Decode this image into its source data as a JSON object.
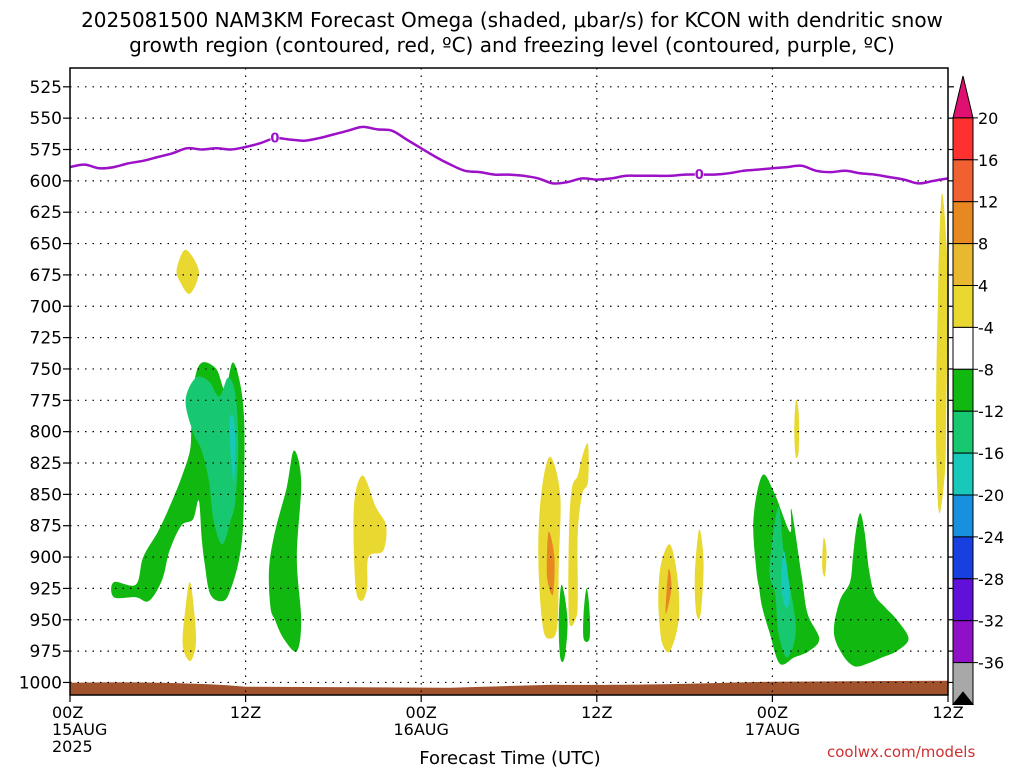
{
  "title_line1": "2025081500 NAM3KM Forecast Omega (shaded, μbar/s) for KCON with dendritic snow",
  "title_line2": "growth region (contoured, red, ºC) and freezing level (contoured, purple, ºC)",
  "credit": "coolwx.com/models",
  "chart_data": {
    "type": "heatmap",
    "xlabel": "Forecast Time (UTC)",
    "ylabel": "",
    "x_unit": "forecast hour",
    "xlim": [
      0,
      60
    ],
    "ylim": [
      1010,
      510
    ],
    "y_ticks": [
      525,
      550,
      575,
      600,
      625,
      650,
      675,
      700,
      725,
      750,
      775,
      800,
      825,
      850,
      875,
      900,
      925,
      950,
      975,
      1000
    ],
    "x_ticks": [
      {
        "hour": 0,
        "lines": [
          "00Z",
          "15AUG",
          "2025"
        ]
      },
      {
        "hour": 12,
        "lines": [
          "12Z"
        ]
      },
      {
        "hour": 24,
        "lines": [
          "00Z",
          "16AUG"
        ]
      },
      {
        "hour": 36,
        "lines": [
          "12Z"
        ]
      },
      {
        "hour": 48,
        "lines": [
          "00Z",
          "17AUG"
        ]
      },
      {
        "hour": 60,
        "lines": [
          "12Z"
        ]
      }
    ],
    "grid": true,
    "colorbar": {
      "labels": [
        "20",
        "16",
        "12",
        "8",
        "4",
        "-4",
        "-8",
        "-12",
        "-16",
        "-20",
        "-24",
        "-28",
        "-32",
        "-36"
      ],
      "colors": [
        "#e01070",
        "#ff3030",
        "#f06030",
        "#e88820",
        "#e8b830",
        "#e8d830",
        "#ffffff",
        "#10b810",
        "#18c870",
        "#18c8b8",
        "#1890e0",
        "#1840e0",
        "#6010d8",
        "#9010c8",
        "#a8a8a8",
        "#000000"
      ]
    },
    "freezing_level": {
      "label": "0",
      "color": "#9c10c8",
      "points": [
        [
          0,
          589
        ],
        [
          1,
          587
        ],
        [
          2,
          590
        ],
        [
          3,
          589
        ],
        [
          4,
          586
        ],
        [
          5,
          584
        ],
        [
          6,
          581
        ],
        [
          7,
          578
        ],
        [
          8,
          574
        ],
        [
          9,
          575
        ],
        [
          10,
          574
        ],
        [
          11,
          575
        ],
        [
          12,
          573
        ],
        [
          13,
          570
        ],
        [
          14,
          566
        ],
        [
          15,
          567
        ],
        [
          16,
          568
        ],
        [
          17,
          566
        ],
        [
          18,
          563
        ],
        [
          19,
          560
        ],
        [
          20,
          557
        ],
        [
          21,
          559
        ],
        [
          22,
          560
        ],
        [
          23,
          567
        ],
        [
          24,
          574
        ],
        [
          25,
          581
        ],
        [
          26,
          587
        ],
        [
          27,
          592
        ],
        [
          28,
          593
        ],
        [
          29,
          595
        ],
        [
          30,
          595
        ],
        [
          31,
          596
        ],
        [
          32,
          598
        ],
        [
          33,
          602
        ],
        [
          34,
          601
        ],
        [
          35,
          598
        ],
        [
          36,
          599
        ],
        [
          37,
          598
        ],
        [
          38,
          596
        ],
        [
          39,
          596
        ],
        [
          40,
          596
        ],
        [
          41,
          596
        ],
        [
          42,
          595
        ],
        [
          43,
          595
        ],
        [
          44,
          595
        ],
        [
          45,
          594
        ],
        [
          46,
          592
        ],
        [
          47,
          591
        ],
        [
          48,
          590
        ],
        [
          49,
          589
        ],
        [
          50,
          588
        ],
        [
          51,
          592
        ],
        [
          52,
          593
        ],
        [
          53,
          592
        ],
        [
          54,
          594
        ],
        [
          55,
          595
        ],
        [
          56,
          597
        ],
        [
          57,
          599
        ],
        [
          58,
          602
        ],
        [
          59,
          600
        ],
        [
          60,
          598
        ]
      ],
      "label_points": [
        [
          14,
          566
        ],
        [
          43,
          595
        ]
      ]
    },
    "omega_regions": [
      {
        "value": -8,
        "color": "#10b810",
        "points": [
          [
            3,
            920
          ],
          [
            4.5,
            922
          ],
          [
            5,
            900
          ],
          [
            6,
            880
          ],
          [
            6.8,
            860
          ],
          [
            7.6,
            837
          ],
          [
            8.2,
            815
          ],
          [
            8.3,
            795
          ],
          [
            8.5,
            760
          ],
          [
            9,
            745
          ],
          [
            10,
            750
          ],
          [
            10.6,
            767
          ],
          [
            11.1,
            745
          ],
          [
            11.6,
            760
          ],
          [
            11.9,
            790
          ],
          [
            11.9,
            840
          ],
          [
            11.8,
            880
          ],
          [
            11.5,
            905
          ],
          [
            11,
            925
          ],
          [
            10.5,
            935
          ],
          [
            9.6,
            930
          ],
          [
            9.2,
            905
          ],
          [
            9,
            885
          ],
          [
            8.8,
            855
          ],
          [
            8.4,
            870
          ],
          [
            7.6,
            875
          ],
          [
            6.8,
            895
          ],
          [
            6.3,
            918
          ],
          [
            5.4,
            935
          ],
          [
            4.5,
            932
          ],
          [
            3,
            932
          ]
        ]
      },
      {
        "value": -12,
        "color": "#18c870",
        "points": [
          [
            7.9,
            775
          ],
          [
            8.6,
            757
          ],
          [
            9.5,
            760
          ],
          [
            10.2,
            772
          ],
          [
            10.8,
            757
          ],
          [
            11.3,
            770
          ],
          [
            11.5,
            810
          ],
          [
            11.3,
            855
          ],
          [
            11,
            870
          ],
          [
            10.4,
            890
          ],
          [
            9.8,
            870
          ],
          [
            9.5,
            840
          ],
          [
            9,
            815
          ],
          [
            8.4,
            800
          ]
        ]
      },
      {
        "value": -16,
        "color": "#18c8b8",
        "points": [
          [
            10.9,
            790
          ],
          [
            11.2,
            790
          ],
          [
            11.3,
            815
          ],
          [
            11.2,
            840
          ],
          [
            11.0,
            820
          ]
        ]
      },
      {
        "value": 4,
        "color": "#e8d830",
        "points": [
          [
            7.3,
            670
          ],
          [
            7.9,
            655
          ],
          [
            8.8,
            672
          ],
          [
            8.2,
            690
          ],
          [
            7.5,
            680
          ]
        ]
      },
      {
        "value": 4,
        "color": "#e8d830",
        "points": [
          [
            7.7,
            970
          ],
          [
            7.9,
            940
          ],
          [
            8.2,
            920
          ],
          [
            8.5,
            945
          ],
          [
            8.6,
            970
          ],
          [
            8.2,
            983
          ]
        ]
      },
      {
        "value": -8,
        "color": "#10b810",
        "points": [
          [
            13.7,
            940
          ],
          [
            13.6,
            910
          ],
          [
            14,
            880
          ],
          [
            14.8,
            845
          ],
          [
            15.3,
            815
          ],
          [
            15.8,
            840
          ],
          [
            15.5,
            900
          ],
          [
            15.8,
            950
          ],
          [
            15.5,
            975
          ],
          [
            14.6,
            965
          ],
          [
            14,
            950
          ]
        ]
      },
      {
        "value": 4,
        "color": "#e8d830",
        "points": [
          [
            19.5,
            922
          ],
          [
            19.4,
            860
          ],
          [
            20,
            835
          ],
          [
            20.9,
            860
          ],
          [
            21.6,
            875
          ],
          [
            21.4,
            895
          ],
          [
            20.4,
            900
          ],
          [
            20.3,
            925
          ],
          [
            19.9,
            935
          ]
        ]
      },
      {
        "value": 4,
        "color": "#e8d830",
        "points": [
          [
            32.3,
            955
          ],
          [
            32.0,
            900
          ],
          [
            32.2,
            850
          ],
          [
            32.8,
            820
          ],
          [
            33.5,
            850
          ],
          [
            33.4,
            905
          ],
          [
            33.3,
            955
          ],
          [
            32.8,
            965
          ]
        ]
      },
      {
        "value": 8,
        "color": "#e88820",
        "points": [
          [
            32.6,
            915
          ],
          [
            32.7,
            880
          ],
          [
            33.1,
            900
          ],
          [
            33.0,
            930
          ]
        ]
      },
      {
        "value": -8,
        "color": "#10b810",
        "points": [
          [
            33.5,
            980
          ],
          [
            33.4,
            950
          ],
          [
            33.6,
            922
          ],
          [
            34,
            950
          ],
          [
            33.8,
            980
          ]
        ]
      },
      {
        "value": 4,
        "color": "#e8d830",
        "points": [
          [
            34.1,
            950
          ],
          [
            34.1,
            880
          ],
          [
            34.3,
            845
          ],
          [
            34.7,
            835
          ],
          [
            35.0,
            820
          ],
          [
            35.4,
            810
          ],
          [
            35.4,
            840
          ],
          [
            35.0,
            850
          ],
          [
            34.7,
            880
          ],
          [
            34.7,
            930
          ],
          [
            34.6,
            948
          ]
        ]
      },
      {
        "value": -8,
        "color": "#10b810",
        "points": [
          [
            35.1,
            965
          ],
          [
            35.1,
            945
          ],
          [
            35.3,
            925
          ],
          [
            35.5,
            942
          ],
          [
            35.5,
            965
          ]
        ]
      },
      {
        "value": 4,
        "color": "#e8d830",
        "points": [
          [
            40.3,
            955
          ],
          [
            40.2,
            930
          ],
          [
            40.4,
            905
          ],
          [
            41,
            890
          ],
          [
            41.5,
            915
          ],
          [
            41.6,
            950
          ],
          [
            41,
            975
          ],
          [
            40.5,
            970
          ]
        ]
      },
      {
        "value": 8,
        "color": "#e88820",
        "points": [
          [
            40.7,
            945
          ],
          [
            40.9,
            910
          ],
          [
            41.1,
            925
          ]
        ]
      },
      {
        "value": 4,
        "color": "#e8d830",
        "points": [
          [
            42.8,
            945
          ],
          [
            42.7,
            915
          ],
          [
            43.0,
            878
          ],
          [
            43.3,
            905
          ],
          [
            43.1,
            945
          ]
        ]
      },
      {
        "value": -8,
        "color": "#10b810",
        "points": [
          [
            46.9,
            910
          ],
          [
            46.7,
            870
          ],
          [
            47.3,
            835
          ],
          [
            48.1,
            848
          ],
          [
            49.2,
            880
          ],
          [
            49.3,
            862
          ],
          [
            50,
            915
          ],
          [
            50.4,
            945
          ],
          [
            51.2,
            965
          ],
          [
            50.5,
            975
          ],
          [
            49.5,
            980
          ],
          [
            48.5,
            985
          ],
          [
            47.8,
            960
          ],
          [
            47.3,
            940
          ],
          [
            47.1,
            925
          ]
        ]
      },
      {
        "value": -12,
        "color": "#18c870",
        "points": [
          [
            47.8,
            910
          ],
          [
            48.4,
            860
          ],
          [
            48.8,
            900
          ],
          [
            49.3,
            930
          ],
          [
            49.6,
            960
          ],
          [
            49,
            980
          ],
          [
            48.4,
            960
          ],
          [
            48.2,
            930
          ]
        ]
      },
      {
        "value": -16,
        "color": "#18c8b8",
        "points": [
          [
            48.6,
            920
          ],
          [
            48.8,
            895
          ],
          [
            49.2,
            930
          ],
          [
            48.9,
            940
          ]
        ]
      },
      {
        "value": 4,
        "color": "#e8d830",
        "points": [
          [
            49.5,
            800
          ],
          [
            49.6,
            775
          ],
          [
            49.8,
            785
          ],
          [
            49.8,
            815
          ],
          [
            49.6,
            820
          ]
        ]
      },
      {
        "value": 4,
        "color": "#e8d830",
        "points": [
          [
            51.4,
            908
          ],
          [
            51.5,
            885
          ],
          [
            51.7,
            895
          ],
          [
            51.6,
            915
          ]
        ]
      },
      {
        "value": -8,
        "color": "#10b810",
        "points": [
          [
            52.2,
            960
          ],
          [
            52.6,
            935
          ],
          [
            53.3,
            920
          ],
          [
            53.5,
            900
          ],
          [
            53.7,
            880
          ],
          [
            54.0,
            865
          ],
          [
            54.3,
            880
          ],
          [
            54.6,
            910
          ],
          [
            55.0,
            930
          ],
          [
            55.7,
            940
          ],
          [
            56.5,
            950
          ],
          [
            57.3,
            965
          ],
          [
            56.5,
            975
          ],
          [
            55.5,
            980
          ],
          [
            54.5,
            985
          ],
          [
            53.6,
            987
          ],
          [
            52.8,
            978
          ]
        ]
      },
      {
        "value": 4,
        "color": "#e8d830",
        "points": [
          [
            59.4,
            865
          ],
          [
            59.2,
            820
          ],
          [
            59.2,
            760
          ],
          [
            59.3,
            700
          ],
          [
            59.4,
            650
          ],
          [
            59.6,
            610
          ],
          [
            59.9,
            650
          ],
          [
            60,
            700
          ],
          [
            59.9,
            770
          ],
          [
            59.8,
            830
          ]
        ]
      }
    ],
    "surface": {
      "color": "#a0522d",
      "pressure": 1001
    }
  }
}
